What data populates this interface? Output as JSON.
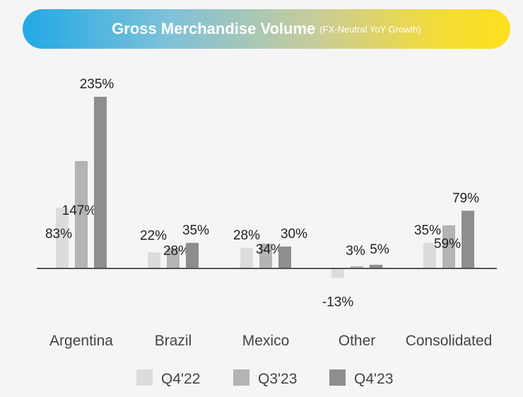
{
  "header": {
    "title": "Gross Merchandise Volume",
    "subtitle": "(FX-Neutral YoY Growth)"
  },
  "colors": {
    "series": [
      "#dcdcdc",
      "#b4b4b4",
      "#8e8e8e"
    ],
    "axis": "#555555",
    "label": "#222222",
    "category": "#444444"
  },
  "chart_data": {
    "type": "bar",
    "title": "Gross Merchandise Volume",
    "subtitle": "(FX-Neutral YoY Growth)",
    "categories": [
      "Argentina",
      "Brazil",
      "Mexico",
      "Other",
      "Consolidated"
    ],
    "series": [
      {
        "name": "Q4'22",
        "values": [
          83,
          22,
          28,
          -13,
          35
        ],
        "labels": [
          "83%",
          "22%",
          "28%",
          "-13%",
          "35%"
        ]
      },
      {
        "name": "Q3'23",
        "values": [
          147,
          28,
          34,
          3,
          59
        ],
        "labels": [
          "147%",
          "28%",
          "34%",
          "3%",
          "59%"
        ]
      },
      {
        "name": "Q4'23",
        "values": [
          235,
          35,
          30,
          5,
          79
        ],
        "labels": [
          "235%",
          "35%",
          "30%",
          "5%",
          "79%"
        ]
      }
    ],
    "ylim": [
      -20,
      240
    ],
    "grid": false,
    "legend": "bottom"
  }
}
